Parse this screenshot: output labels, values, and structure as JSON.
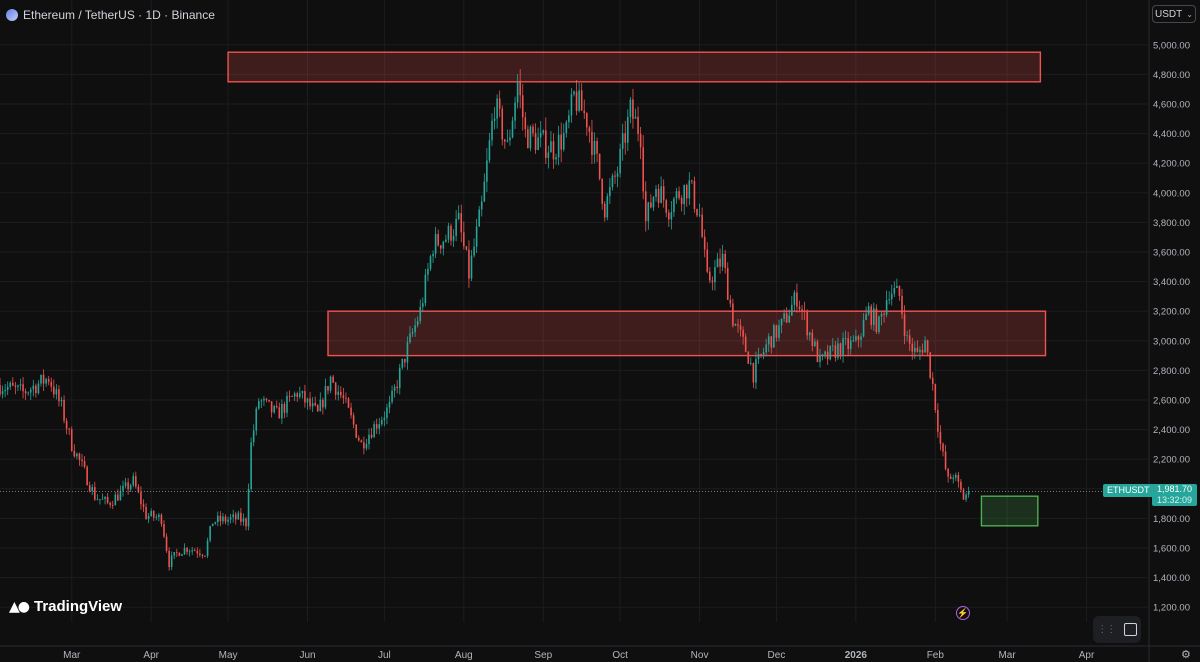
{
  "header": {
    "title": "Ethereum / TetherUS · 1D · Binance"
  },
  "currency_selector": {
    "label": "USDT"
  },
  "brand": {
    "name": "TradingView"
  },
  "last_price": {
    "symbol": "ETHUSDT",
    "price": "1,981.70",
    "countdown": "13:32:09",
    "value": 1981.7
  },
  "colors": {
    "up": "#26a69a",
    "down": "#ef5350",
    "zone_red": "#ef5350",
    "zone_green": "#4caf50",
    "background": "#0f0f0f"
  },
  "chart_data": {
    "type": "candlestick",
    "yaxis": {
      "ticks": [
        1200,
        1400,
        1600,
        1800,
        2000,
        2200,
        2400,
        2600,
        2800,
        3000,
        3200,
        3400,
        3600,
        3800,
        4000,
        4200,
        4400,
        4600,
        4800,
        5000
      ],
      "tick_labels": [
        "1,200.00",
        "1,400.00",
        "1,600.00",
        "1,800.00",
        "2,000.00",
        "2,200.00",
        "2,400.00",
        "2,600.00",
        "2,800.00",
        "3,000.00",
        "3,200.00",
        "3,400.00",
        "3,600.00",
        "3,800.00",
        "4,000.00",
        "4,200.00",
        "4,400.00",
        "4,600.00",
        "4,800.00",
        "5,000.00"
      ],
      "range": [
        1100,
        5100
      ]
    },
    "xaxis": {
      "labels": [
        "Mar",
        "Apr",
        "May",
        "Jun",
        "Jul",
        "Aug",
        "Sep",
        "Oct",
        "Nov",
        "Dec",
        "2026",
        "Feb",
        "Mar",
        "Apr"
      ],
      "bold_labels": [
        "2026"
      ],
      "label_dates": [
        "2025-03-01",
        "2025-04-01",
        "2025-05-01",
        "2025-06-01",
        "2025-07-01",
        "2025-08-01",
        "2025-09-01",
        "2025-10-01",
        "2025-11-01",
        "2025-12-01",
        "2026-01-01",
        "2026-02-01",
        "2026-03-01",
        "2026-04-01"
      ],
      "range": [
        "2025-02-01",
        "2026-04-25"
      ]
    },
    "zones": [
      {
        "from": "2025-05-01",
        "to": "2026-03-14",
        "low": 4750,
        "high": 4950,
        "color": "red"
      },
      {
        "from": "2025-06-09",
        "to": "2026-03-16",
        "low": 2900,
        "high": 3200,
        "color": "red"
      },
      {
        "from": "2026-02-19",
        "to": "2026-03-13",
        "low": 1750,
        "high": 1950,
        "color": "green"
      }
    ],
    "price_path": [
      {
        "date": "2025-02-01",
        "close": 2700
      },
      {
        "date": "2025-02-10",
        "close": 2650
      },
      {
        "date": "2025-02-20",
        "close": 2750
      },
      {
        "date": "2025-02-25",
        "close": 2550
      },
      {
        "date": "2025-03-01",
        "close": 2300
      },
      {
        "date": "2025-03-05",
        "close": 2150
      },
      {
        "date": "2025-03-10",
        "close": 1950
      },
      {
        "date": "2025-03-15",
        "close": 1900
      },
      {
        "date": "2025-03-20",
        "close": 1970
      },
      {
        "date": "2025-03-25",
        "close": 2050
      },
      {
        "date": "2025-03-30",
        "close": 1820
      },
      {
        "date": "2025-04-05",
        "close": 1800
      },
      {
        "date": "2025-04-08",
        "close": 1500
      },
      {
        "date": "2025-04-12",
        "close": 1580
      },
      {
        "date": "2025-04-15",
        "close": 1600
      },
      {
        "date": "2025-04-22",
        "close": 1570
      },
      {
        "date": "2025-04-25",
        "close": 1780
      },
      {
        "date": "2025-05-05",
        "close": 1800
      },
      {
        "date": "2025-05-08",
        "close": 1770
      },
      {
        "date": "2025-05-10",
        "close": 2300
      },
      {
        "date": "2025-05-13",
        "close": 2600
      },
      {
        "date": "2025-05-20",
        "close": 2500
      },
      {
        "date": "2025-05-28",
        "close": 2650
      },
      {
        "date": "2025-06-05",
        "close": 2500
      },
      {
        "date": "2025-06-10",
        "close": 2750
      },
      {
        "date": "2025-06-15",
        "close": 2600
      },
      {
        "date": "2025-06-22",
        "close": 2300
      },
      {
        "date": "2025-06-26",
        "close": 2400
      },
      {
        "date": "2025-07-03",
        "close": 2550
      },
      {
        "date": "2025-07-10",
        "close": 2950
      },
      {
        "date": "2025-07-15",
        "close": 3200
      },
      {
        "date": "2025-07-20",
        "close": 3650
      },
      {
        "date": "2025-07-25",
        "close": 3700
      },
      {
        "date": "2025-07-30",
        "close": 3800
      },
      {
        "date": "2025-08-03",
        "close": 3450
      },
      {
        "date": "2025-08-08",
        "close": 3900
      },
      {
        "date": "2025-08-13",
        "close": 4600
      },
      {
        "date": "2025-08-18",
        "close": 4300
      },
      {
        "date": "2025-08-22",
        "close": 4750
      },
      {
        "date": "2025-08-25",
        "close": 4400
      },
      {
        "date": "2025-08-30",
        "close": 4350
      },
      {
        "date": "2025-09-05",
        "close": 4300
      },
      {
        "date": "2025-09-10",
        "close": 4400
      },
      {
        "date": "2025-09-13",
        "close": 4650
      },
      {
        "date": "2025-09-18",
        "close": 4500
      },
      {
        "date": "2025-09-22",
        "close": 4200
      },
      {
        "date": "2025-09-25",
        "close": 3900
      },
      {
        "date": "2025-09-30",
        "close": 4150
      },
      {
        "date": "2025-10-05",
        "close": 4550
      },
      {
        "date": "2025-10-09",
        "close": 4400
      },
      {
        "date": "2025-10-11",
        "close": 3800
      },
      {
        "date": "2025-10-15",
        "close": 4050
      },
      {
        "date": "2025-10-20",
        "close": 3900
      },
      {
        "date": "2025-10-24",
        "close": 4000
      },
      {
        "date": "2025-10-28",
        "close": 4050
      },
      {
        "date": "2025-11-01",
        "close": 3850
      },
      {
        "date": "2025-11-04",
        "close": 3400
      },
      {
        "date": "2025-11-10",
        "close": 3550
      },
      {
        "date": "2025-11-14",
        "close": 3150
      },
      {
        "date": "2025-11-20",
        "close": 2900
      },
      {
        "date": "2025-11-22",
        "close": 2780
      },
      {
        "date": "2025-11-28",
        "close": 3000
      },
      {
        "date": "2025-12-03",
        "close": 3100
      },
      {
        "date": "2025-12-09",
        "close": 3300
      },
      {
        "date": "2025-12-12",
        "close": 3150
      },
      {
        "date": "2025-12-18",
        "close": 2850
      },
      {
        "date": "2025-12-25",
        "close": 2950
      },
      {
        "date": "2026-01-01",
        "close": 2980
      },
      {
        "date": "2026-01-06",
        "close": 3200
      },
      {
        "date": "2026-01-10",
        "close": 3100
      },
      {
        "date": "2026-01-14",
        "close": 3350
      },
      {
        "date": "2026-01-18",
        "close": 3300
      },
      {
        "date": "2026-01-21",
        "close": 3000
      },
      {
        "date": "2026-01-25",
        "close": 2900
      },
      {
        "date": "2026-01-28",
        "close": 3000
      },
      {
        "date": "2026-01-31",
        "close": 2700
      },
      {
        "date": "2026-02-03",
        "close": 2300
      },
      {
        "date": "2026-02-06",
        "close": 2050
      },
      {
        "date": "2026-02-08",
        "close": 2100
      },
      {
        "date": "2026-02-12",
        "close": 1940
      },
      {
        "date": "2026-02-14",
        "close": 1981.7
      }
    ]
  }
}
